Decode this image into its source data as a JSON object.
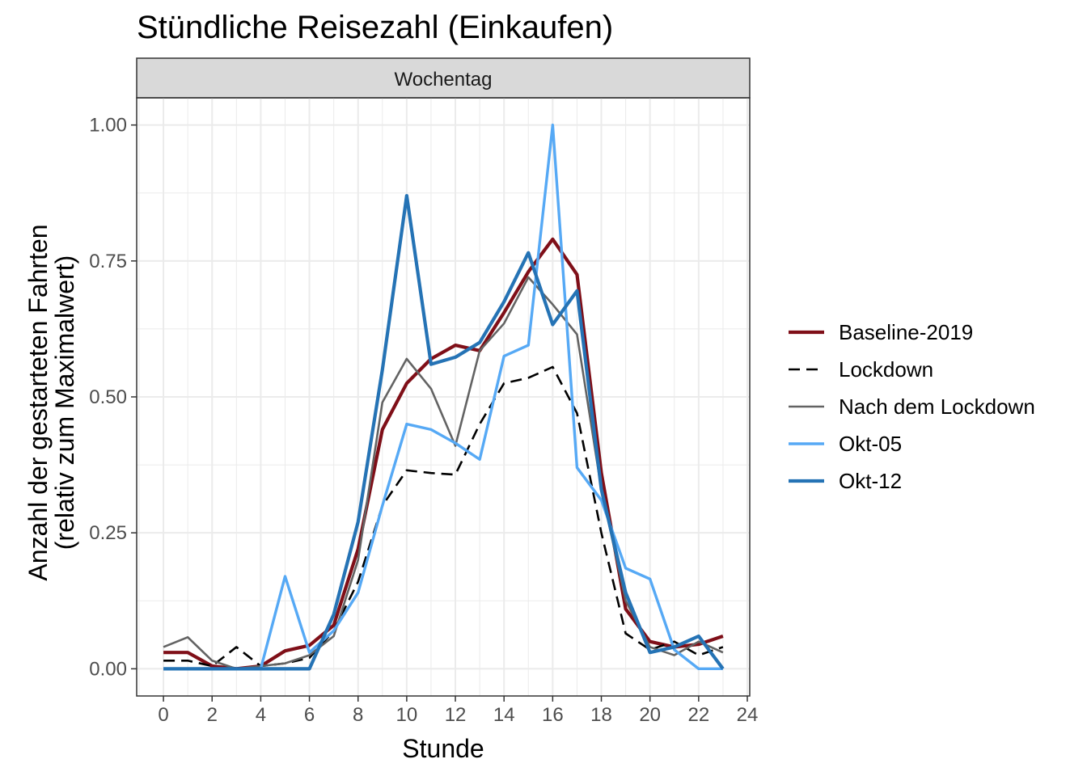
{
  "chart_data": {
    "type": "line",
    "title": "Stündliche Reisezahl (Einkaufen)",
    "facet_label": "Wochentag",
    "xlabel": "Stunde",
    "ylabel_line1": "Anzahl der gestarteten Fahrten",
    "ylabel_line2": "(relativ zum Maximalwert)",
    "xlim": [
      -1.1,
      24.1
    ],
    "ylim": [
      -0.05,
      1.05
    ],
    "x_ticks": [
      0,
      2,
      4,
      6,
      8,
      10,
      12,
      14,
      16,
      18,
      20,
      22,
      24
    ],
    "x_tick_labels": [
      "0",
      "2",
      "4",
      "6",
      "8",
      "10",
      "12",
      "14",
      "16",
      "18",
      "20",
      "22",
      "24"
    ],
    "y_ticks": [
      0,
      0.25,
      0.5,
      0.75,
      1.0
    ],
    "y_tick_labels": [
      "0.00",
      "0.25",
      "0.50",
      "0.75",
      "1.00"
    ],
    "grid": true,
    "legend_position": "right",
    "x": [
      0,
      1,
      2,
      3,
      4,
      5,
      6,
      7,
      8,
      9,
      10,
      11,
      12,
      13,
      14,
      15,
      16,
      17,
      18,
      19,
      20,
      21,
      22,
      23
    ],
    "series": [
      {
        "name": "Baseline-2019",
        "color": "#7f0f18",
        "dash": "solid",
        "values": [
          0.03,
          0.03,
          0.005,
          0.0,
          0.005,
          0.033,
          0.043,
          0.08,
          0.22,
          0.44,
          0.525,
          0.57,
          0.595,
          0.585,
          0.655,
          0.73,
          0.79,
          0.725,
          0.36,
          0.11,
          0.05,
          0.04,
          0.045,
          0.06
        ]
      },
      {
        "name": "Lockdown",
        "color": "#000000",
        "dash": "dashed",
        "values": [
          0.015,
          0.015,
          0.005,
          0.04,
          0.005,
          0.01,
          0.02,
          0.07,
          0.16,
          0.3,
          0.365,
          0.36,
          0.357,
          0.45,
          0.525,
          0.535,
          0.555,
          0.47,
          0.25,
          0.065,
          0.035,
          0.05,
          0.025,
          0.04
        ]
      },
      {
        "name": "Nach dem Lockdown",
        "color": "#636363",
        "dash": "solid",
        "values": [
          0.04,
          0.058,
          0.015,
          0.0,
          0.005,
          0.01,
          0.025,
          0.06,
          0.2,
          0.49,
          0.57,
          0.515,
          0.41,
          0.585,
          0.635,
          0.72,
          0.67,
          0.615,
          0.33,
          0.125,
          0.04,
          0.025,
          0.05,
          0.03
        ]
      },
      {
        "name": "Okt-05",
        "color": "#56a9f5",
        "dash": "solid",
        "values": [
          0.0,
          0.0,
          0.0,
          0.0,
          0.0,
          0.17,
          0.03,
          0.07,
          0.14,
          0.3,
          0.45,
          0.44,
          0.415,
          0.385,
          0.575,
          0.595,
          1.0,
          0.37,
          0.31,
          0.185,
          0.165,
          0.035,
          0.0,
          0.0
        ]
      },
      {
        "name": "Okt-12",
        "color": "#2573b5",
        "dash": "solid",
        "values": [
          0.0,
          0.0,
          0.0,
          0.0,
          0.0,
          0.0,
          0.0,
          0.1,
          0.27,
          0.55,
          0.87,
          0.56,
          0.573,
          0.6,
          0.675,
          0.765,
          0.633,
          0.695,
          0.33,
          0.14,
          0.03,
          0.04,
          0.06,
          0.0
        ]
      }
    ]
  }
}
